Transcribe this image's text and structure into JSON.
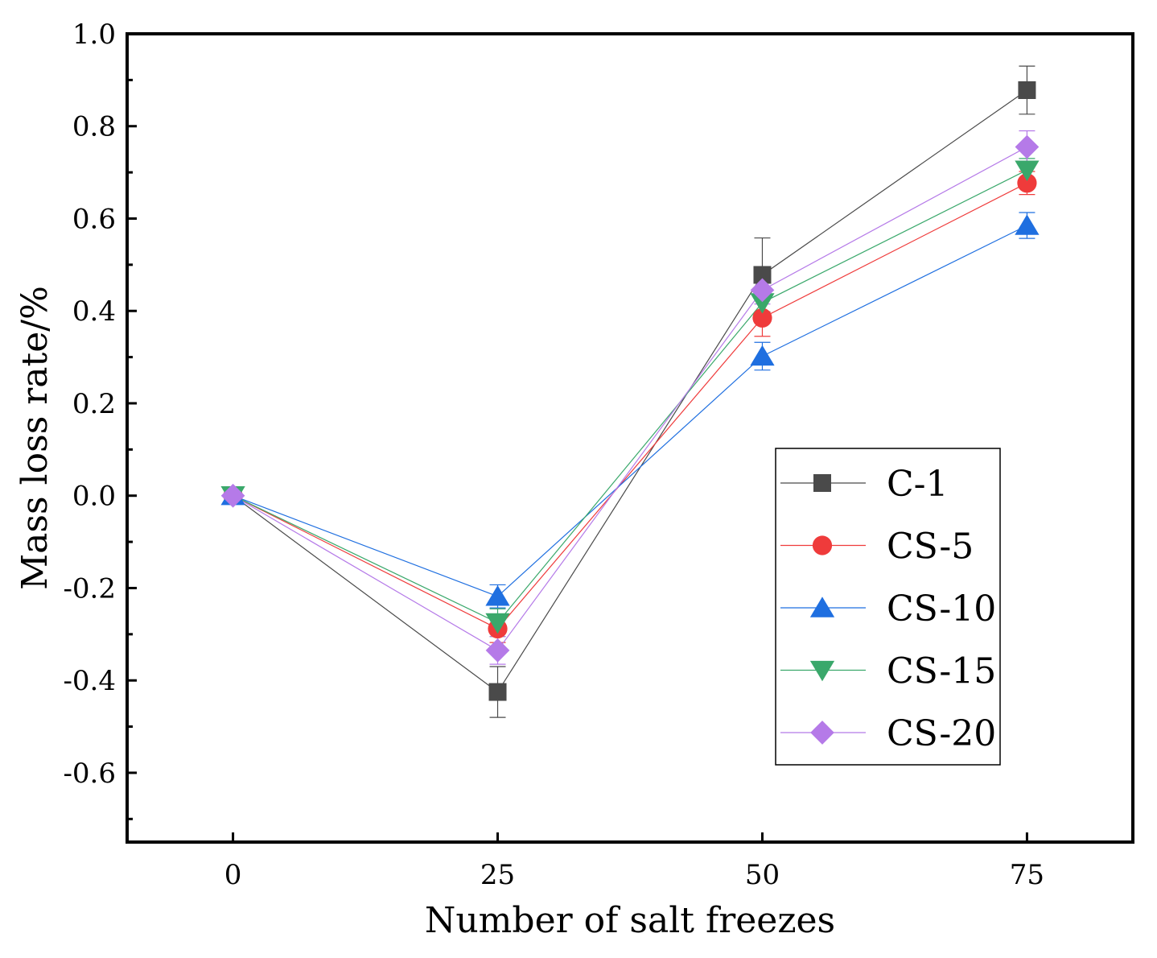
{
  "chart_data": {
    "type": "line",
    "title": "",
    "xlabel": "Number of salt freezes",
    "ylabel": "Mass loss rate/%",
    "x": [
      0,
      25,
      50,
      75
    ],
    "xlim": [
      -10,
      85
    ],
    "ylim": [
      -0.75,
      1.0
    ],
    "x_ticks": [
      "0",
      "25",
      "50",
      "75"
    ],
    "y_ticks": [
      "1.0",
      "0.8",
      "0.6",
      "0.4",
      "0.2",
      "0.0",
      "-0.2",
      "-0.4",
      "-0.6"
    ],
    "legend_position": "center-right",
    "series": [
      {
        "name": "C-1",
        "marker": "square",
        "color": "#4a4a4a",
        "line_color": "#4a4a4a",
        "values": [
          0.0,
          -0.425,
          0.478,
          0.878
        ],
        "errors": [
          0.0,
          0.055,
          0.08,
          0.052
        ]
      },
      {
        "name": "CS-5",
        "marker": "circle",
        "color": "#ef3b3b",
        "line_color": "#ef3b3b",
        "values": [
          0.0,
          -0.288,
          0.385,
          0.677
        ],
        "errors": [
          0.0,
          0.03,
          0.04,
          0.025
        ]
      },
      {
        "name": "CS-10",
        "marker": "triangle-up",
        "color": "#1f6fe0",
        "line_color": "#1f6fe0",
        "values": [
          0.0,
          -0.218,
          0.302,
          0.585
        ],
        "errors": [
          0.0,
          0.025,
          0.03,
          0.028
        ]
      },
      {
        "name": "CS-15",
        "marker": "triangle-down",
        "color": "#3aa86b",
        "line_color": "#3aa86b",
        "values": [
          0.0,
          -0.275,
          0.418,
          0.705
        ],
        "errors": [
          0.0,
          0.03,
          0.03,
          0.025
        ]
      },
      {
        "name": "CS-20",
        "marker": "diamond",
        "color": "#b57ae8",
        "line_color": "#b57ae8",
        "values": [
          0.0,
          -0.335,
          0.445,
          0.755
        ],
        "errors": [
          0.0,
          0.03,
          0.03,
          0.035
        ]
      }
    ]
  }
}
